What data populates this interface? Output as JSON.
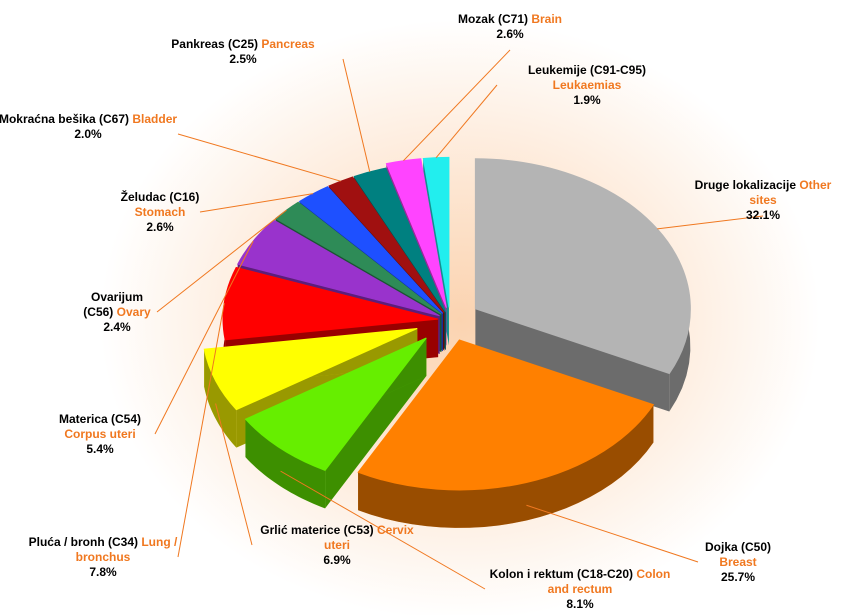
{
  "chart_data": {
    "type": "pie",
    "categories": [
      "Druge lokalizacije",
      "Dojka (C50)",
      "Kolon i rektum (C18-C20)",
      "Grlić materice (C53)",
      "Pluća / bronh (C34)",
      "Materica (C54)",
      "Ovarijum (C56)",
      "Želudac (C16)",
      "Mokraćna bešika (C67)",
      "Pankreas (C25)",
      "Mozak (C71)",
      "Leukemije (C91-C95)"
    ],
    "categories_en": [
      "Other sites",
      "Breast",
      "Colon and rectum",
      "Cervix uteri",
      "Lung / bronchus",
      "Corpus uteri",
      "Ovary",
      "Stomach",
      "Bladder",
      "Pancreas",
      "Brain",
      "Leukaemias"
    ],
    "values": [
      32.1,
      25.7,
      8.1,
      6.9,
      7.8,
      5.4,
      2.4,
      2.6,
      2.0,
      2.5,
      2.6,
      1.9
    ],
    "value_labels": [
      "32.1%",
      "25.7%",
      "8.1%",
      "6.9%",
      "7.8%",
      "5.4%",
      "2.4%",
      "2.6%",
      "2.0%",
      "2.5%",
      "2.6%",
      "1.9%"
    ],
    "colors": [
      "#b4b4b4",
      "#ff8000",
      "#66ee00",
      "#ffff00",
      "#ff0000",
      "#9933cc",
      "#2e8b57",
      "#1e50ff",
      "#a01010",
      "#008080",
      "#ff44ff",
      "#22eeee"
    ]
  }
}
